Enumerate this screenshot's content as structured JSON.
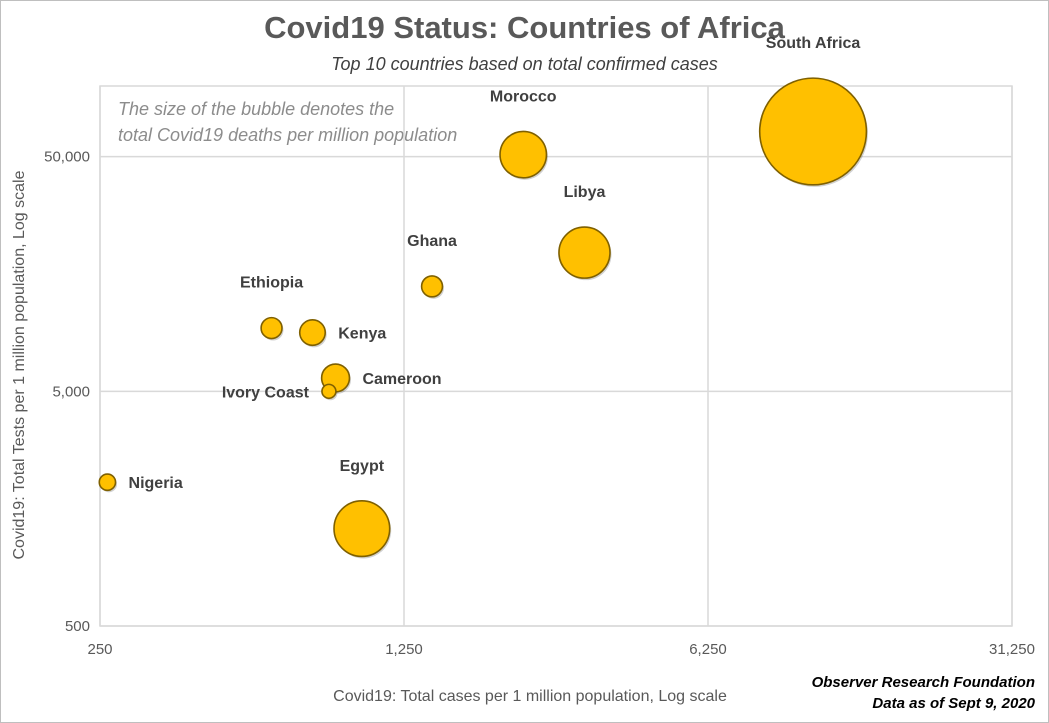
{
  "chart_data": {
    "type": "bubble",
    "title": "Covid19 Status: Countries of Africa",
    "subtitle": "Top 10 countries based on total confirmed cases",
    "note_lines": [
      "The size of the bubble denotes the",
      "total Covid19 deaths per million population"
    ],
    "xlabel": "Covid19: Total cases per 1 million population, Log scale",
    "ylabel": "Covid19: Total Tests per 1 million population, Log scale",
    "x_scale": "log",
    "y_scale": "log",
    "xlim": [
      250,
      31250
    ],
    "ylim": [
      500,
      100000
    ],
    "x_ticks": [
      250,
      1250,
      6250,
      31250
    ],
    "x_tick_labels": [
      "250",
      "1,250",
      "6,250",
      "31,250"
    ],
    "y_ticks": [
      500,
      5000,
      50000
    ],
    "y_tick_labels": [
      "500",
      "5,000",
      "50,000"
    ],
    "grid": true,
    "bubble_color": "#FFC000",
    "bubble_outline": "#7f6000",
    "series": [
      {
        "name": "South Africa",
        "x": 10900,
        "y": 64000,
        "size": 46,
        "label_pos": "above"
      },
      {
        "name": "Morocco",
        "x": 2350,
        "y": 51000,
        "size": 20,
        "label_pos": "above"
      },
      {
        "name": "Libya",
        "x": 3250,
        "y": 19500,
        "size": 22,
        "label_pos": "above"
      },
      {
        "name": "Ghana",
        "x": 1450,
        "y": 14000,
        "size": 9,
        "label_pos": "above"
      },
      {
        "name": "Ethiopia",
        "x": 620,
        "y": 9300,
        "size": 9,
        "label_pos": "above"
      },
      {
        "name": "Kenya",
        "x": 770,
        "y": 8900,
        "size": 11,
        "label_pos": "right"
      },
      {
        "name": "Cameroon",
        "x": 870,
        "y": 5700,
        "size": 12,
        "label_pos": "right"
      },
      {
        "name": "Ivory Coast",
        "x": 840,
        "y": 5000,
        "size": 6,
        "label_pos": "left"
      },
      {
        "name": "Nigeria",
        "x": 260,
        "y": 2050,
        "size": 7,
        "label_pos": "right"
      },
      {
        "name": "Egypt",
        "x": 1000,
        "y": 1300,
        "size": 24,
        "label_pos": "above"
      }
    ],
    "source_lines": [
      "Observer Research Foundation",
      "Data as of Sept 9, 2020"
    ]
  }
}
